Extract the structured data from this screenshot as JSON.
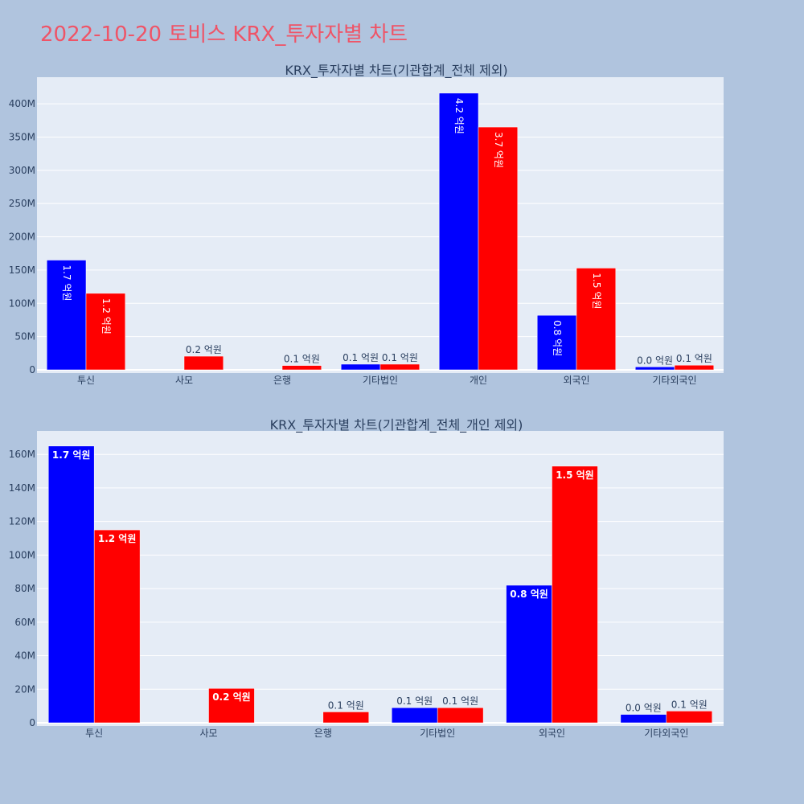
{
  "page": {
    "title": "2022-10-20 토비스 KRX_투자자별 차트"
  },
  "colors": {
    "series_a": "#0000ff",
    "series_b": "#ff0000",
    "plot_bg": "#e5ecf6",
    "page_bg": "#b0c4de",
    "title": "#ef5467"
  },
  "chart_data": [
    {
      "type": "bar",
      "title": "KRX_투자자별 차트(기관합계_전체 제외)",
      "categories": [
        "투신",
        "사모",
        "은행",
        "기타법인",
        "개인",
        "외국인",
        "기타외국인"
      ],
      "yticks": [
        0,
        50000000,
        100000000,
        150000000,
        200000000,
        250000000,
        300000000,
        350000000,
        400000000
      ],
      "ytick_labels": [
        "0",
        "50M",
        "100M",
        "150M",
        "200M",
        "250M",
        "300M",
        "350M",
        "400M"
      ],
      "ylim": [
        0,
        440000000
      ],
      "series": [
        {
          "name": "blue",
          "color": "#0000ff",
          "values": [
            165000000,
            0,
            0,
            8500000,
            416000000,
            82000000,
            4500000
          ],
          "labels": [
            "1.7 억원",
            "",
            "",
            "0.1 억원",
            "4.2 억원",
            "0.8 억원",
            "0.0 억원"
          ]
        },
        {
          "name": "red",
          "color": "#ff0000",
          "values": [
            115000000,
            20500000,
            6500000,
            8500000,
            365000000,
            153000000,
            7000000
          ],
          "labels": [
            "1.2 억원",
            "0.2 억원",
            "0.1 억원",
            "0.1 억원",
            "3.7 억원",
            "1.5 억원",
            "0.1 억원"
          ]
        }
      ]
    },
    {
      "type": "bar",
      "title": "KRX_투자자별 차트(기관합계_전체_개인 제외)",
      "categories": [
        "투신",
        "사모",
        "은행",
        "기타법인",
        "외국인",
        "기타외국인"
      ],
      "yticks": [
        0,
        20000000,
        40000000,
        60000000,
        80000000,
        100000000,
        120000000,
        140000000,
        160000000
      ],
      "ytick_labels": [
        "0",
        "20M",
        "40M",
        "60M",
        "80M",
        "100M",
        "120M",
        "140M",
        "160M"
      ],
      "ylim": [
        0,
        174000000
      ],
      "series": [
        {
          "name": "blue",
          "color": "#0000ff",
          "values": [
            165000000,
            0,
            0,
            9000000,
            82000000,
            5000000
          ],
          "labels": [
            "1.7 억원",
            "",
            "",
            "0.1 억원",
            "0.8 억원",
            "0.0 억원"
          ]
        },
        {
          "name": "red",
          "color": "#ff0000",
          "values": [
            115000000,
            20500000,
            6500000,
            9000000,
            153000000,
            7000000
          ],
          "labels": [
            "1.2 억원",
            "0.2 억원",
            "0.1 억원",
            "0.1 억원",
            "1.5 억원",
            "0.1 억원"
          ]
        }
      ]
    }
  ]
}
